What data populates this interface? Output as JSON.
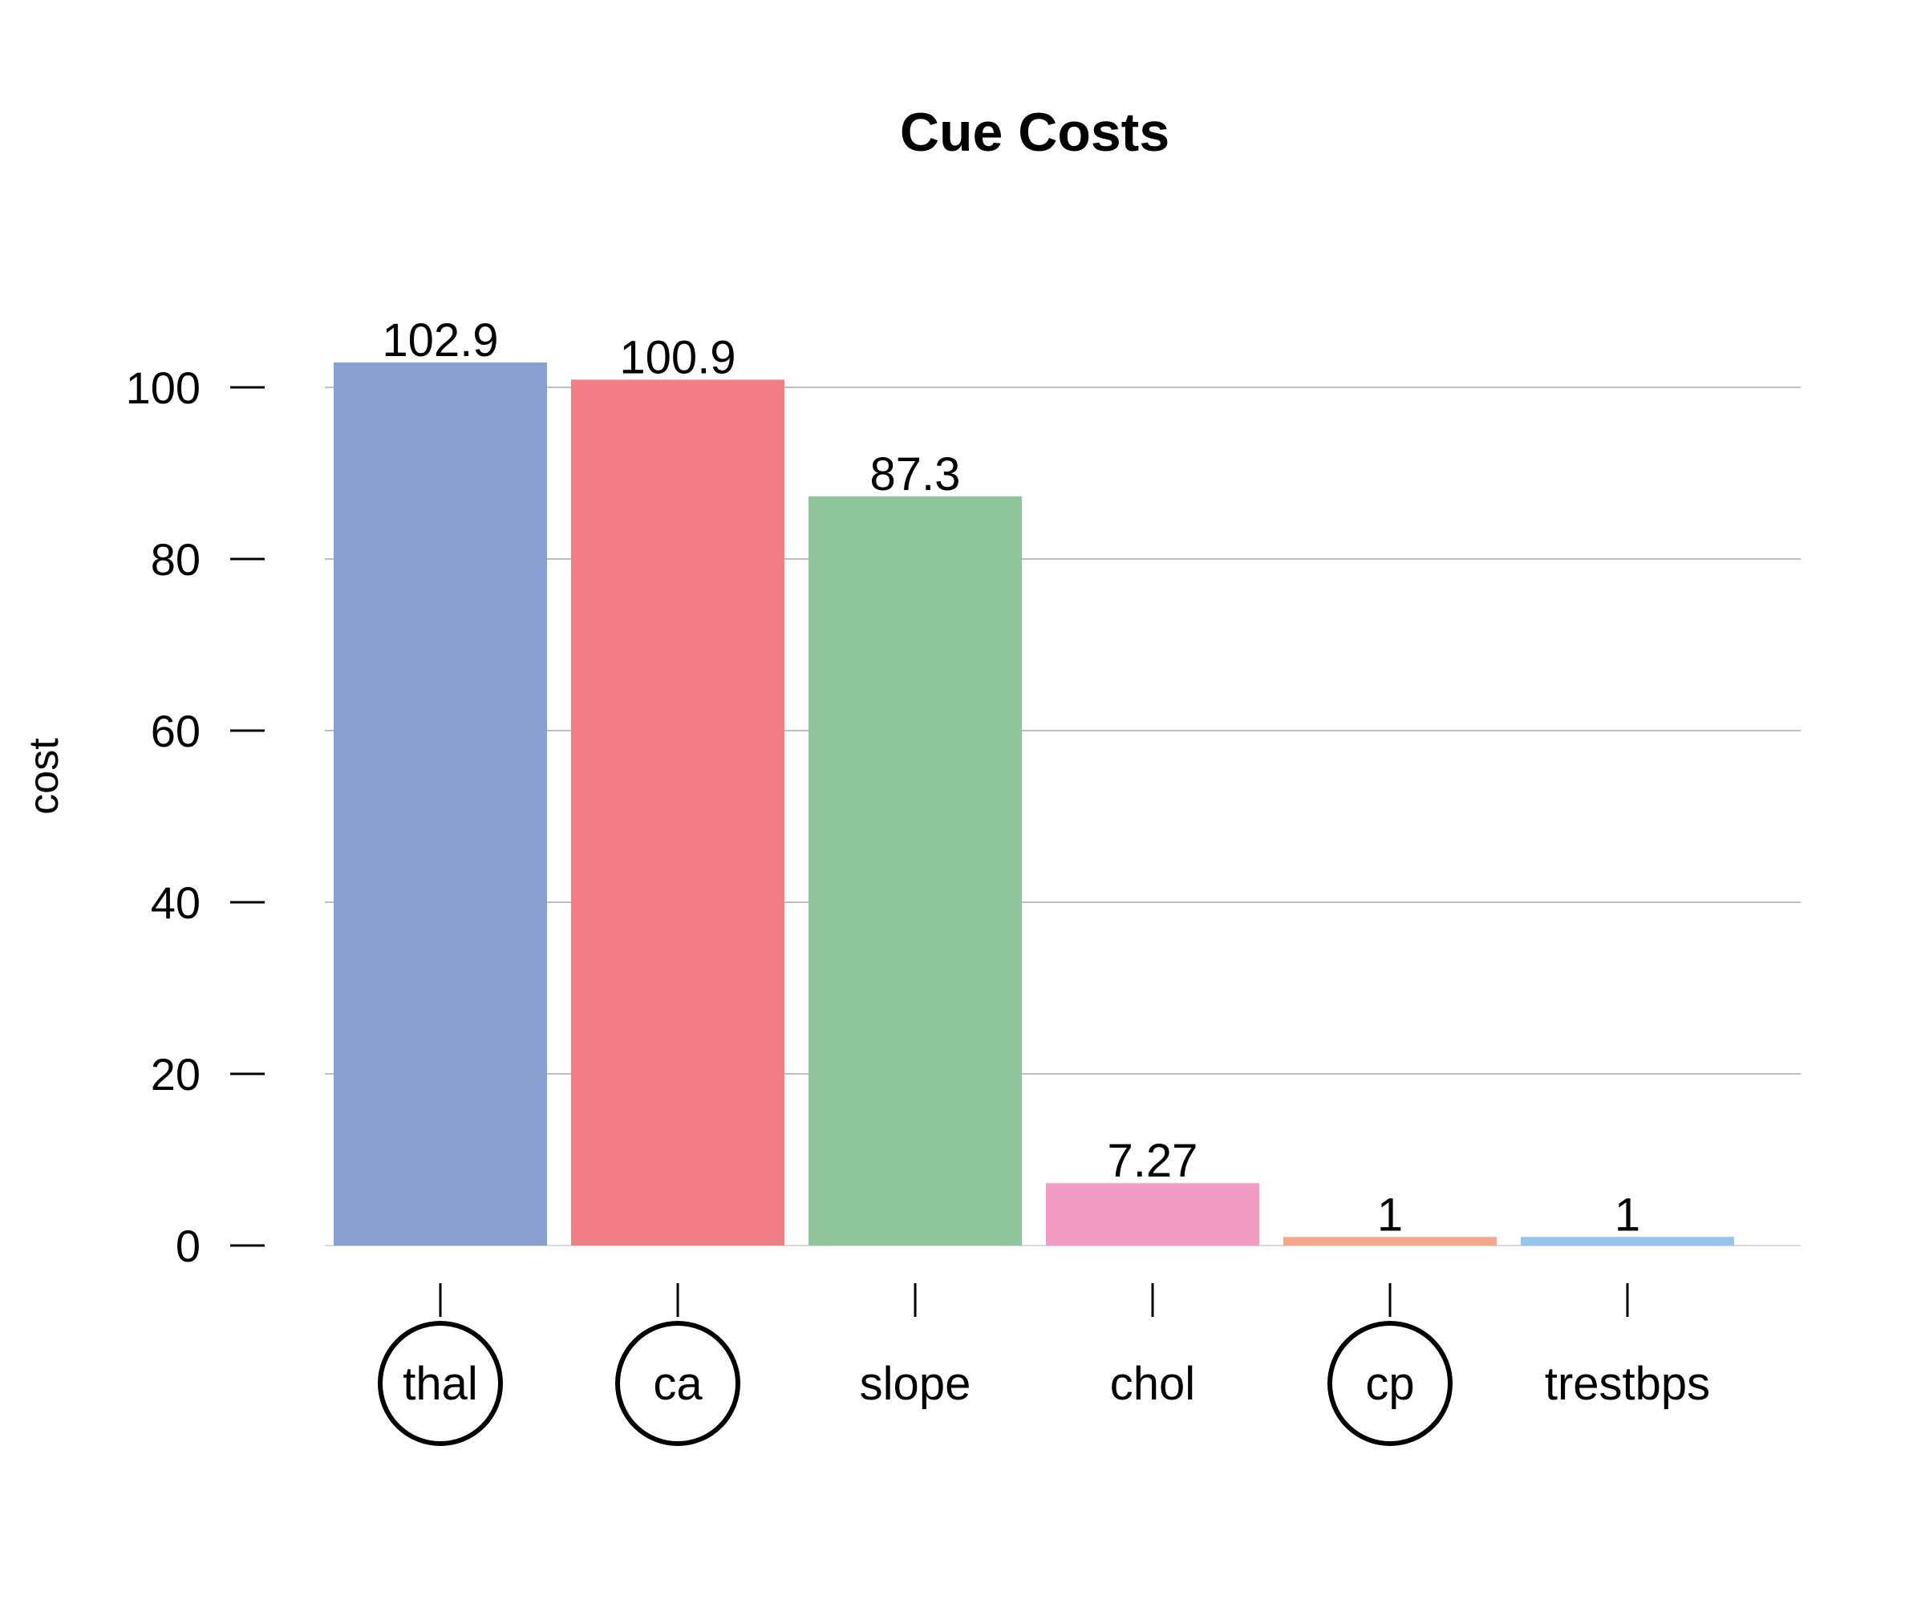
{
  "chart_data": {
    "type": "bar",
    "title": "Cue Costs",
    "xlabel": "",
    "ylabel": "cost",
    "categories": [
      "thal",
      "ca",
      "slope",
      "chol",
      "cp",
      "trestbps"
    ],
    "values": [
      102.9,
      100.9,
      87.3,
      7.27,
      1,
      1
    ],
    "value_labels": [
      "102.9",
      "100.9",
      "87.3",
      "7.27",
      "1",
      "1"
    ],
    "circled": [
      true,
      true,
      false,
      false,
      true,
      false
    ],
    "colors": [
      "#889FCF",
      "#F27F88",
      "#8EC598",
      "#F29BC4",
      "#F4A98A",
      "#95C5EB"
    ],
    "ylim": [
      0,
      110
    ],
    "yticks": [
      0,
      20,
      40,
      60,
      80,
      100
    ],
    "grid": true,
    "legend": "none"
  }
}
